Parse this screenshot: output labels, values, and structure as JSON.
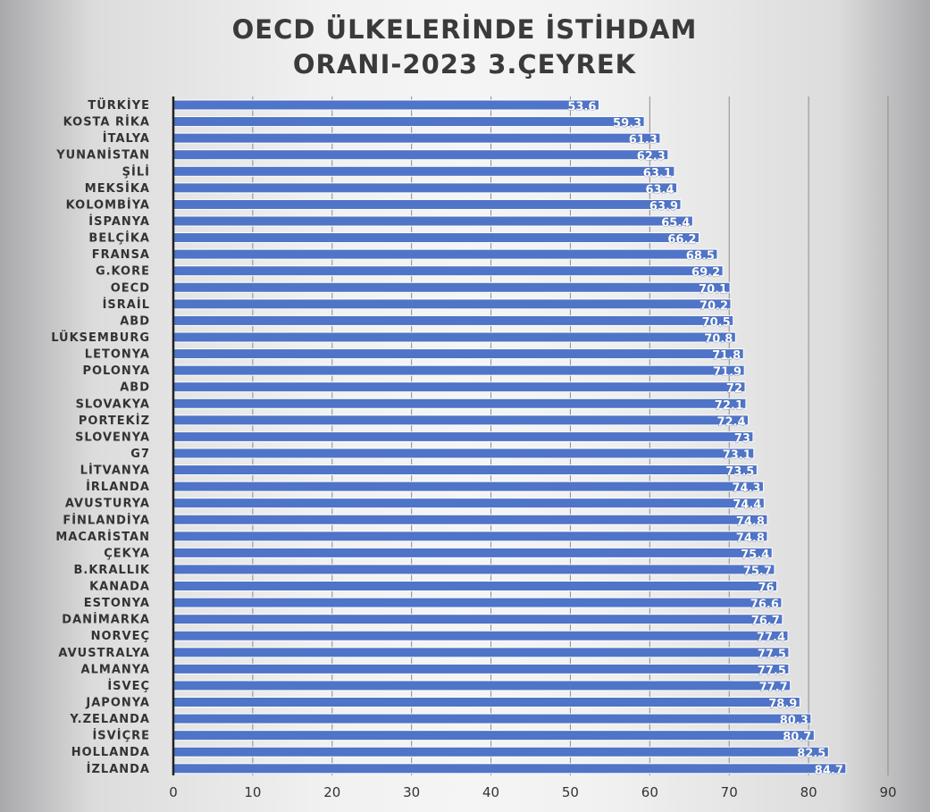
{
  "chart_data": {
    "type": "bar",
    "orientation": "horizontal",
    "title": [
      "OECD ÜLKELERİNDE İSTİHDAM",
      "ORANI-2023 3.ÇEYREK"
    ],
    "categories": [
      "TÜRKİYE",
      "KOSTA RİKA",
      "İTALYA",
      "YUNANİSTAN",
      "ŞİLİ",
      "MEKSİKA",
      "KOLOMBİYA",
      "İSPANYA",
      "BELÇİKA",
      "FRANSA",
      "G.KORE",
      "OECD",
      "İSRAİL",
      "ABD",
      "LÜKSEMBURG",
      "LETONYA",
      "POLONYA",
      "ABD",
      "SLOVAKYA",
      "PORTEKİZ",
      "SLOVENYA",
      "G7",
      "LİTVANYA",
      "İRLANDA",
      "AVUSTURYA",
      "FİNLANDİYA",
      "MACARİSTAN",
      "ÇEKYA",
      "B.KRALLIK",
      "KANADA",
      "ESTONYA",
      "DANİMARKA",
      "NORVEÇ",
      "AVUSTRALYA",
      "ALMANYA",
      "İSVEÇ",
      "JAPONYA",
      "Y.ZELANDA",
      "İSVİÇRE",
      "HOLLANDA",
      "İZLANDA"
    ],
    "values": [
      53.6,
      59.3,
      61.3,
      62.3,
      63.1,
      63.4,
      63.9,
      65.4,
      66.2,
      68.5,
      69.2,
      70.1,
      70.2,
      70.5,
      70.8,
      71.8,
      71.9,
      72,
      72.1,
      72.4,
      73,
      73.1,
      73.5,
      74.3,
      74.4,
      74.8,
      74.8,
      75.4,
      75.7,
      76,
      76.6,
      76.7,
      77.4,
      77.5,
      77.5,
      77.7,
      78.9,
      80.3,
      80.7,
      82.5,
      84.7
    ],
    "value_labels": [
      "53.6",
      "59.3",
      "61.3",
      "62.3",
      "63.1",
      "63.4",
      "63.9",
      "65.4",
      "66.2",
      "68.5",
      "69.2",
      "70.1",
      "70.2",
      "70.5",
      "70.8",
      "71.8",
      "71.9",
      "72",
      "72.1",
      "72.4",
      "73",
      "73.1",
      "73.5",
      "74.3",
      "74.4",
      "74.8",
      "74.8",
      "75.4",
      "75.7",
      "76",
      "76.6",
      "76.7",
      "77.4",
      "77.5",
      "77.5",
      "77.7",
      "78.9",
      "80.3",
      "80.7",
      "82.5",
      "84.7"
    ],
    "xlim": [
      0,
      90
    ],
    "xticks": [
      "0",
      "10",
      "20",
      "30",
      "40",
      "50",
      "60",
      "70",
      "80",
      "90"
    ],
    "xlabel": "",
    "ylabel": "",
    "grid": true,
    "legend": "none",
    "colors": {
      "bar": "#4f74c8",
      "bar_edge": "#ffffff",
      "title": "#3a3a3a",
      "labels": "#333333",
      "grid": "#8c8c8c"
    }
  }
}
